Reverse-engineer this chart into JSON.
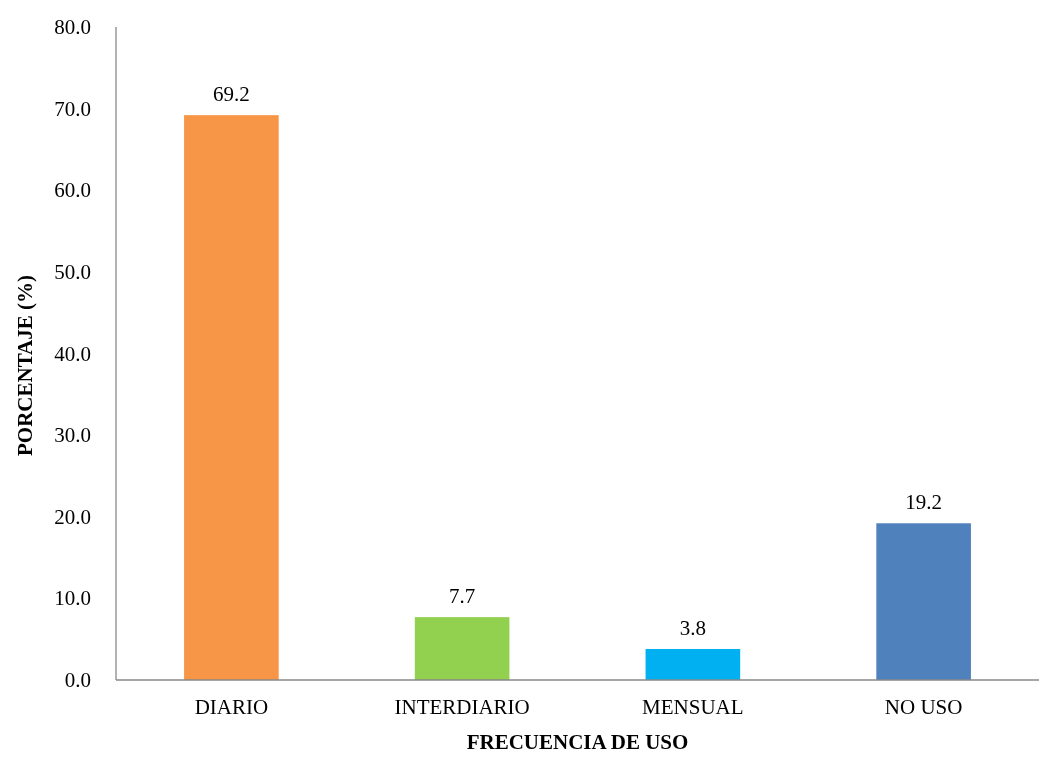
{
  "chart_data": {
    "type": "bar",
    "categories": [
      "DIARIO",
      "INTERDIARIO",
      "MENSUAL",
      "NO USO"
    ],
    "values": [
      69.2,
      7.7,
      3.8,
      19.2
    ],
    "colors": [
      "#f79646",
      "#92d050",
      "#00b0f0",
      "#4f81bd"
    ],
    "xlabel": "FRECUENCIA DE USO",
    "ylabel": "PORCENTAJE (%)",
    "ylim": [
      0,
      80
    ],
    "yticks": [
      {
        "value": 0,
        "label": "0.0"
      },
      {
        "value": 10,
        "label": "10.0"
      },
      {
        "value": 20,
        "label": "20.0"
      },
      {
        "value": 30,
        "label": "30.0"
      },
      {
        "value": 40,
        "label": "40.0"
      },
      {
        "value": 50,
        "label": "50.0"
      },
      {
        "value": 60,
        "label": "60.0"
      },
      {
        "value": 70,
        "label": "70.0"
      },
      {
        "value": 80,
        "label": "80.0"
      }
    ],
    "data_labels": true,
    "grid": false,
    "legend": false
  }
}
